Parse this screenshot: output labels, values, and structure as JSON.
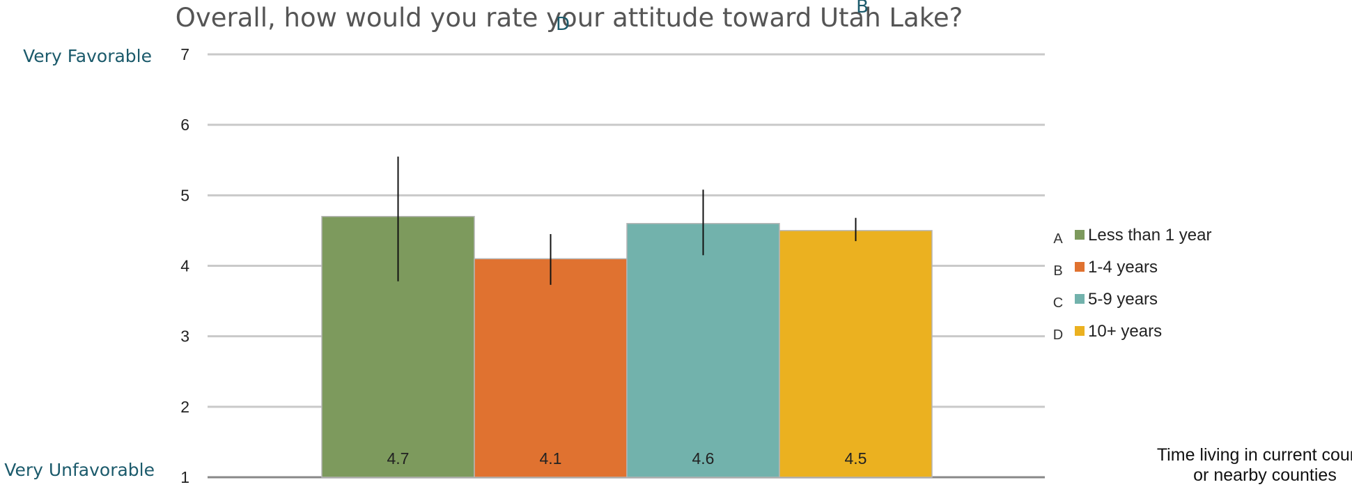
{
  "chart_data": {
    "type": "bar",
    "title": "Overall, how would you rate your attitude toward Utah Lake?",
    "title_markers": [
      "D",
      "B"
    ],
    "y_top_label": "Very Favorable",
    "y_bottom_label": "Very Unfavorable",
    "ylim": [
      1,
      7
    ],
    "yticks": [
      1,
      2,
      3,
      4,
      5,
      6,
      7
    ],
    "grid": true,
    "legend_position": "right",
    "legend_title": "Time living in current county or nearby counties",
    "legend_title_lines": [
      "Time living in current county",
      "or nearby counties"
    ],
    "series": [
      {
        "letter": "A",
        "name": "Less than 1 year",
        "value": 4.7,
        "value_label": "4.7",
        "err_low": 3.78,
        "err_high": 5.55,
        "color": "#7d9a5d"
      },
      {
        "letter": "B",
        "name": "1-4 years",
        "value": 4.1,
        "value_label": "4.1",
        "err_low": 3.73,
        "err_high": 4.45,
        "color": "#e07230"
      },
      {
        "letter": "C",
        "name": "5-9 years",
        "value": 4.6,
        "value_label": "4.6",
        "err_low": 4.15,
        "err_high": 5.08,
        "color": "#72b2ac"
      },
      {
        "letter": "D",
        "name": "10+ years",
        "value": 4.5,
        "value_label": "4.5",
        "err_low": 4.35,
        "err_high": 4.68,
        "color": "#ebb120"
      }
    ]
  }
}
